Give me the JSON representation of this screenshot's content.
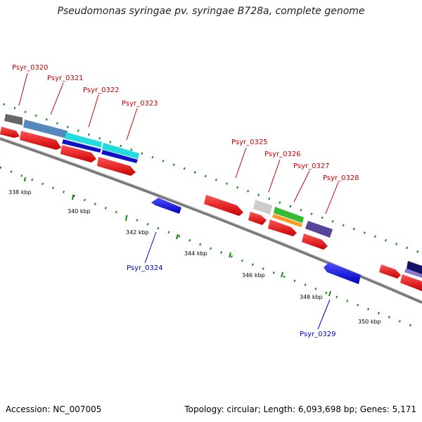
{
  "title": "Pseudomonas syringae pv. syringae B728a, complete genome",
  "footer": {
    "accession": "Accession: NC_007005",
    "summary": "Topology: circular; Length: 6,093,698 bp; Genes: 5,171"
  },
  "colors": {
    "forward_label": "#cc0000",
    "reverse_label": "#0000cc",
    "backbone": "#888888",
    "tick": "#118811"
  },
  "ticks": [
    {
      "label": "338 kbp"
    },
    {
      "label": "340 kbp"
    },
    {
      "label": "342 kbp"
    },
    {
      "label": "344 kbp"
    },
    {
      "label": "346 kbp"
    },
    {
      "label": "348 kbp"
    },
    {
      "label": "350 kbp"
    }
  ],
  "forward_labels": [
    {
      "text": "Psyr_0320"
    },
    {
      "text": "Psyr_0321"
    },
    {
      "text": "Psyr_0322"
    },
    {
      "text": "Psyr_0323"
    },
    {
      "text": "Psyr_0325"
    },
    {
      "text": "Psyr_0326"
    },
    {
      "text": "Psyr_0327"
    },
    {
      "text": "Psyr_0328"
    }
  ],
  "reverse_labels": [
    {
      "text": "Psyr_0324"
    },
    {
      "text": "Psyr_0329"
    }
  ]
}
